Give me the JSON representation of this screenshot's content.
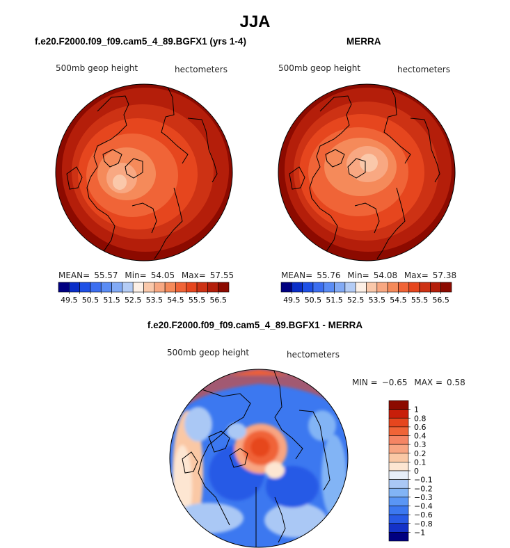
{
  "main_title": "JJA",
  "panels": [
    {
      "title": "f.e20.F2000.f09_f09.cam5_4_89.BGFX1 (yrs 1-4)",
      "variable": "500mb geop height",
      "units": "hectometers",
      "stats": {
        "mean_label": "MEAN=",
        "mean": "55.57",
        "min_label": "Min=",
        "min": "54.05",
        "max_label": "Max=",
        "max": "57.55"
      }
    },
    {
      "title": "MERRA",
      "variable": "500mb geop height",
      "units": "hectometers",
      "stats": {
        "mean_label": "MEAN=",
        "mean": "55.76",
        "min_label": "Min=",
        "min": "54.08",
        "max_label": "Max=",
        "max": "57.38"
      }
    },
    {
      "title": "f.e20.F2000.f09_f09.cam5_4_89.BGFX1 - MERRA",
      "variable": "500mb geop height",
      "units": "hectometers",
      "stats": {
        "min_label": "MIN =",
        "min": "−0.65",
        "max_label": "MAX =",
        "max": "0.58"
      }
    }
  ],
  "colors": {
    "abs_scale": [
      "#000080",
      "#0a2ec8",
      "#1e50e6",
      "#3c6ef0",
      "#5a8cf5",
      "#82aaf5",
      "#b4ccf5",
      "#fdf0e6",
      "#fac8aa",
      "#f8a882",
      "#f58a5a",
      "#f06437",
      "#e6461e",
      "#cd3214",
      "#b41e0a",
      "#8c0a00"
    ],
    "diff_scale": [
      "#000080",
      "#1432c8",
      "#285ae6",
      "#3c78f0",
      "#5a96f5",
      "#82b4f5",
      "#aac8f5",
      "#e6eef8",
      "#fde6d2",
      "#fac8a5",
      "#f8a582",
      "#f58564",
      "#f06437",
      "#e6461e",
      "#c81e0a",
      "#8c0a00"
    ]
  },
  "chart_data": [
    {
      "type": "heatmap",
      "projection": "north-polar-stereographic",
      "title": "f.e20.F2000.f09_f09.cam5_4_89.BGFX1 (yrs 1-4)",
      "field": "500mb geop height",
      "units": "hectometers",
      "mean": 55.57,
      "min": 54.05,
      "max": 57.55,
      "colorbar_levels": [
        49.5,
        50,
        50.5,
        51,
        51.5,
        52,
        52.5,
        53,
        53.5,
        54,
        54.5,
        55,
        55.5,
        56,
        56.5
      ],
      "colorbar_tick_labels": [
        "49.5",
        "50.5",
        "51.5",
        "52.5",
        "53.5",
        "54.5",
        "55.5",
        "56.5"
      ],
      "colorbar_position": "bottom"
    },
    {
      "type": "heatmap",
      "projection": "north-polar-stereographic",
      "title": "MERRA",
      "field": "500mb geop height",
      "units": "hectometers",
      "mean": 55.76,
      "min": 54.08,
      "max": 57.38,
      "colorbar_levels": [
        49.5,
        50,
        50.5,
        51,
        51.5,
        52,
        52.5,
        53,
        53.5,
        54,
        54.5,
        55,
        55.5,
        56,
        56.5
      ],
      "colorbar_tick_labels": [
        "49.5",
        "50.5",
        "51.5",
        "52.5",
        "53.5",
        "54.5",
        "55.5",
        "56.5"
      ],
      "colorbar_position": "bottom"
    },
    {
      "type": "heatmap",
      "projection": "north-polar-stereographic",
      "title": "f.e20.F2000.f09_f09.cam5_4_89.BGFX1 - MERRA",
      "field": "500mb geop height",
      "units": "hectometers",
      "min": -0.65,
      "max": 0.58,
      "colorbar_levels": [
        -1,
        -0.8,
        -0.6,
        -0.4,
        -0.3,
        -0.2,
        -0.1,
        0,
        0.1,
        0.2,
        0.3,
        0.4,
        0.6,
        0.8,
        1
      ],
      "colorbar_tick_labels": [
        "1",
        "0.8",
        "0.6",
        "0.4",
        "0.3",
        "0.2",
        "0.1",
        "0",
        "−0.1",
        "−0.2",
        "−0.3",
        "−0.4",
        "−0.6",
        "−0.8",
        "−1"
      ],
      "colorbar_position": "right"
    }
  ]
}
